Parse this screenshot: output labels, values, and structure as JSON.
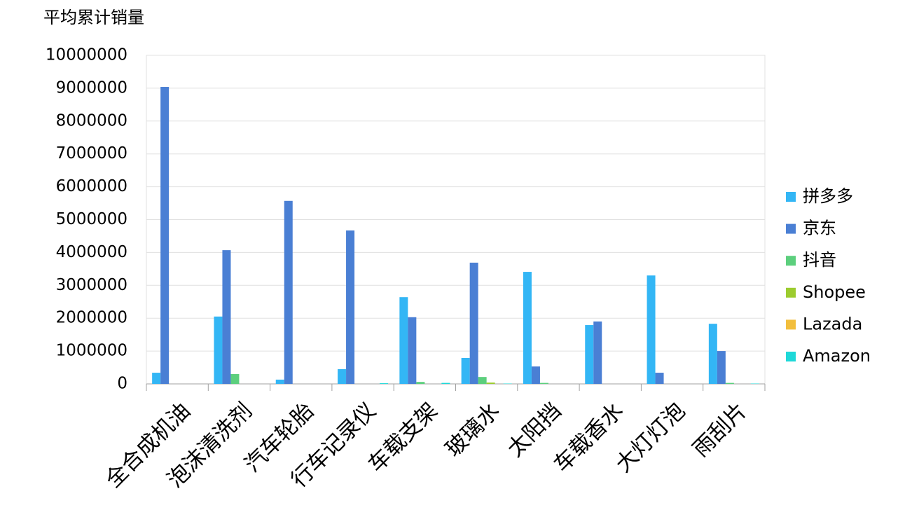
{
  "chart_data": {
    "type": "bar",
    "title": "平均累计销量",
    "categories": [
      "全合成机油",
      "泡沫清洗剂",
      "汽车轮胎",
      "行车记录仪",
      "车载支架",
      "玻璃水",
      "太阳挡",
      "车载香水",
      "大灯灯泡",
      "雨刮片"
    ],
    "series": [
      {
        "name": "拼多多",
        "color": "#33b6f5",
        "values": [
          340000,
          2050000,
          130000,
          450000,
          2640000,
          790000,
          3410000,
          1790000,
          3300000,
          1830000
        ]
      },
      {
        "name": "京东",
        "color": "#4a7fd4",
        "values": [
          9040000,
          4070000,
          5570000,
          4670000,
          2030000,
          3690000,
          530000,
          1900000,
          340000,
          1000000
        ]
      },
      {
        "name": "抖音",
        "color": "#5ccf7d",
        "values": [
          0,
          300000,
          0,
          0,
          60000,
          210000,
          30000,
          0,
          0,
          30000
        ]
      },
      {
        "name": "Shopee",
        "color": "#9ccc2f",
        "values": [
          0,
          0,
          0,
          0,
          0,
          40000,
          0,
          0,
          0,
          0
        ]
      },
      {
        "name": "Lazada",
        "color": "#f2be3c",
        "values": [
          0,
          0,
          0,
          0,
          0,
          0,
          0,
          0,
          0,
          0
        ]
      },
      {
        "name": "Amazon",
        "color": "#1ed8d8",
        "values": [
          0,
          0,
          0,
          20000,
          30000,
          10000,
          0,
          0,
          0,
          10000
        ]
      }
    ],
    "ylim": [
      0,
      10000000
    ],
    "yticks": [
      0,
      1000000,
      2000000,
      3000000,
      4000000,
      5000000,
      6000000,
      7000000,
      8000000,
      9000000,
      10000000
    ],
    "grid": true,
    "legend": "right"
  }
}
